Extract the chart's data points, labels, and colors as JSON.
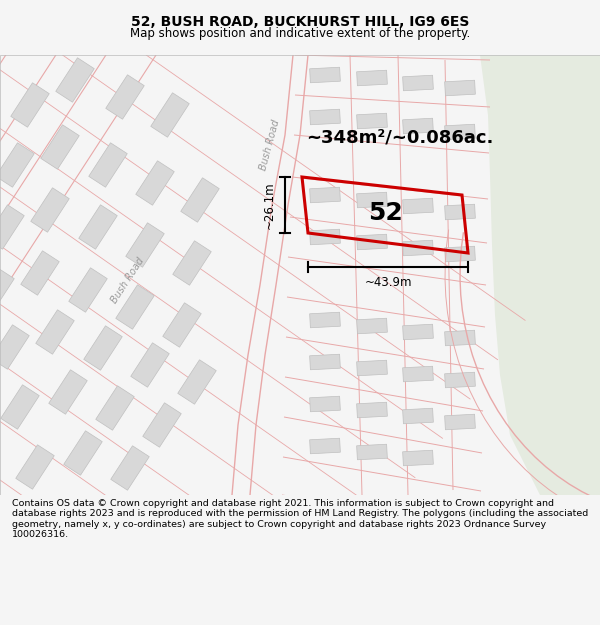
{
  "title": "52, BUSH ROAD, BUCKHURST HILL, IG9 6ES",
  "subtitle": "Map shows position and indicative extent of the property.",
  "footer": "Contains OS data © Crown copyright and database right 2021. This information is subject to Crown copyright and database rights 2023 and is reproduced with the permission of HM Land Registry. The polygons (including the associated geometry, namely x, y co-ordinates) are subject to Crown copyright and database rights 2023 Ordnance Survey 100026316.",
  "area_label": "~348m²/~0.086ac.",
  "number_label": "52",
  "width_label": "~43.9m",
  "height_label": "~26.1m",
  "road_label_bush_right": "Bush Road",
  "road_label_bush_left": "Bush Road",
  "bg_color": "#f5f5f5",
  "map_bg": "#ffffff",
  "green_bg": "#e5ebe0",
  "road_line_color": "#e8a8a8",
  "building_fill": "#d8d8d8",
  "building_outline": "#c0c0c0",
  "property_color": "#cc0000",
  "text_color": "#000000",
  "road_text_color": "#999999",
  "title_fontsize": 10,
  "subtitle_fontsize": 8.5,
  "footer_fontsize": 6.8,
  "area_fontsize": 13,
  "number_fontsize": 18,
  "dim_fontsize": 8.5,
  "road_fontsize": 7
}
